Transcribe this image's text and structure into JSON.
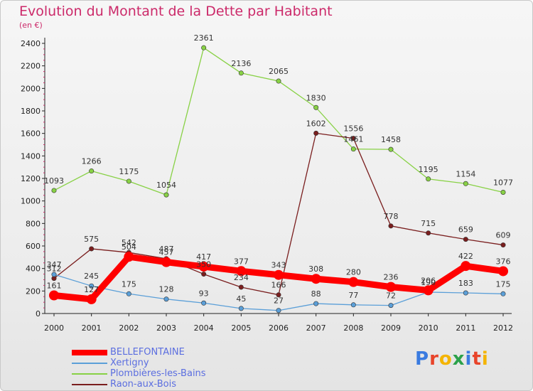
{
  "header": {
    "title": "Evolution du Montant de la Dette par Habitant",
    "unit": "(en €)"
  },
  "chart_data": {
    "type": "line",
    "title": "Evolution du Montant de la Dette par Habitant",
    "ylabel": "(en €)",
    "xlabel": "",
    "x": [
      "2000",
      "2001",
      "2002",
      "2003",
      "2004",
      "2005",
      "2006",
      "2007",
      "2008",
      "2009",
      "2010",
      "2011",
      "2012"
    ],
    "yticks": [
      0,
      200,
      400,
      600,
      800,
      1000,
      1200,
      1400,
      1600,
      1800,
      2000,
      2200,
      2400
    ],
    "ylim": [
      0,
      2400
    ],
    "grid": false,
    "legend_position": "bottom-left",
    "series": [
      {
        "name": "BELLEFONTAINE",
        "color": "#ff0000",
        "values": [
          161,
          127,
          504,
          457,
          417,
          377,
          343,
          308,
          280,
          236,
          206,
          422,
          376
        ]
      },
      {
        "name": "Xertigny",
        "color": "#5b9fd8",
        "values": [
          347,
          245,
          175,
          128,
          93,
          45,
          27,
          88,
          77,
          72,
          190,
          183,
          175
        ]
      },
      {
        "name": "Plombières-les-Bains",
        "color": "#88d145",
        "values": [
          1093,
          1266,
          1175,
          1054,
          2361,
          2136,
          2065,
          1830,
          1461,
          1458,
          1195,
          1154,
          1077
        ]
      },
      {
        "name": "Raon-aux-Bois",
        "color": "#7a1e1e",
        "values": [
          312,
          575,
          542,
          487,
          350,
          234,
          166,
          1602,
          1556,
          778,
          715,
          659,
          609
        ]
      }
    ]
  },
  "legend": {
    "items": [
      {
        "label": "BELLEFONTAINE"
      },
      {
        "label": "Xertigny"
      },
      {
        "label": "Plombières-les-Bains"
      },
      {
        "label": "Raon-aux-Bois"
      }
    ]
  },
  "logo": {
    "text": "Proxiti",
    "letters": [
      "P",
      "r",
      "o",
      "x",
      "i",
      "t",
      "i"
    ],
    "colors": [
      "#3a7be0",
      "#e8442a",
      "#f4b400",
      "#2ba14a",
      "#3a7be0",
      "#e8442a",
      "#f4b400"
    ]
  }
}
